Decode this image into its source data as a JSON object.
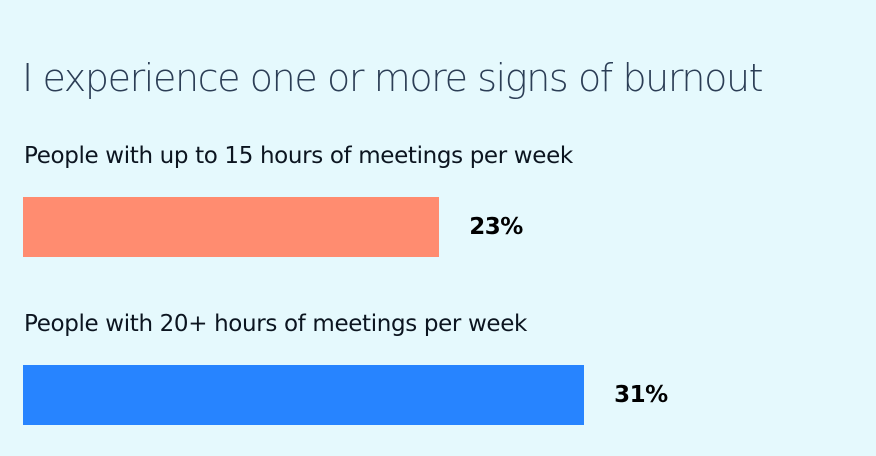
{
  "colors": {
    "background": "#E5F9FD",
    "title_text": "#2C3E56",
    "label_text": "#0C1520",
    "value_text": "#000000"
  },
  "chart_data": {
    "type": "bar",
    "orientation": "horizontal",
    "title": "I experience one or more signs of burnout",
    "categories": [
      "People with up to 15 hours of meetings per week",
      "People with 20+ hours of meetings per week"
    ],
    "values": [
      23,
      31
    ],
    "value_labels": [
      "23%",
      "31%"
    ],
    "bar_colors": [
      "#FF8C70",
      "#2784FF"
    ],
    "xlim": [
      0,
      100
    ],
    "grid": false,
    "legend": "none"
  }
}
